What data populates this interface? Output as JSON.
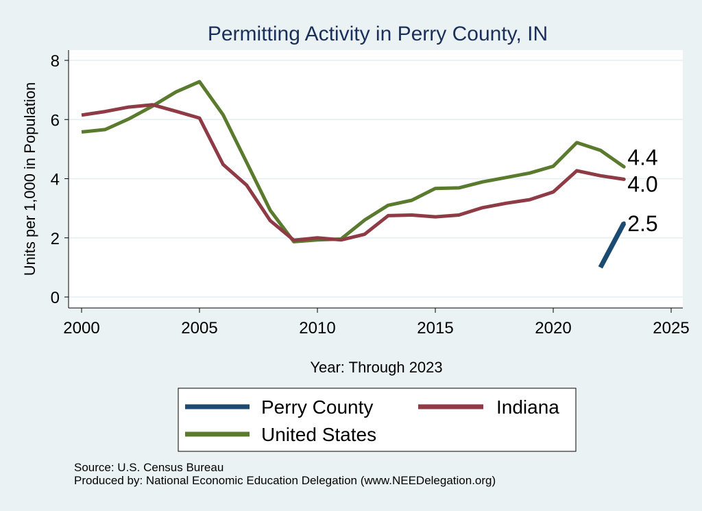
{
  "chart_data": {
    "type": "line",
    "title": "Permitting Activity in Perry County, IN",
    "xlabel": "Year: Through 2023",
    "ylabel": "Units per 1,000 in Population",
    "xlim": [
      2000,
      2025
    ],
    "ylim": [
      0,
      8
    ],
    "xticks": [
      2000,
      2005,
      2010,
      2015,
      2020,
      2025
    ],
    "yticks": [
      0,
      2,
      4,
      6,
      8
    ],
    "grid": true,
    "legend_position": "bottom",
    "series": [
      {
        "name": "Perry County",
        "color": "#1b4a72",
        "x": [
          2022,
          2023
        ],
        "values": [
          1.0,
          2.5
        ],
        "end_label": "2.5"
      },
      {
        "name": "Indiana",
        "color": "#8e3b46",
        "x": [
          2000,
          2001,
          2002,
          2003,
          2004,
          2005,
          2006,
          2007,
          2008,
          2009,
          2010,
          2011,
          2012,
          2013,
          2014,
          2015,
          2016,
          2017,
          2018,
          2019,
          2020,
          2021,
          2022,
          2023
        ],
        "values": [
          6.15,
          6.27,
          6.42,
          6.5,
          6.28,
          6.05,
          4.48,
          3.78,
          2.58,
          1.92,
          2.0,
          1.93,
          2.12,
          2.75,
          2.77,
          2.71,
          2.77,
          3.02,
          3.17,
          3.29,
          3.55,
          4.27,
          4.1,
          3.98
        ],
        "end_label": "4.0"
      },
      {
        "name": "United States",
        "color": "#5a7a2e",
        "x": [
          2000,
          2001,
          2002,
          2003,
          2004,
          2005,
          2006,
          2007,
          2008,
          2009,
          2010,
          2011,
          2012,
          2013,
          2014,
          2015,
          2016,
          2017,
          2018,
          2019,
          2020,
          2021,
          2022,
          2023
        ],
        "values": [
          5.58,
          5.66,
          6.02,
          6.45,
          6.93,
          7.28,
          6.16,
          4.55,
          2.93,
          1.87,
          1.93,
          1.96,
          2.6,
          3.1,
          3.27,
          3.67,
          3.69,
          3.89,
          4.04,
          4.19,
          4.42,
          5.22,
          4.96,
          4.4
        ],
        "end_label": "4.4"
      }
    ],
    "legend": {
      "order": [
        "Perry County",
        "Indiana",
        "United States"
      ]
    },
    "source_lines": [
      "Source: U.S. Census Bureau",
      "Produced by: National Economic Education Delegation (www.NEEDelegation.org)"
    ]
  }
}
